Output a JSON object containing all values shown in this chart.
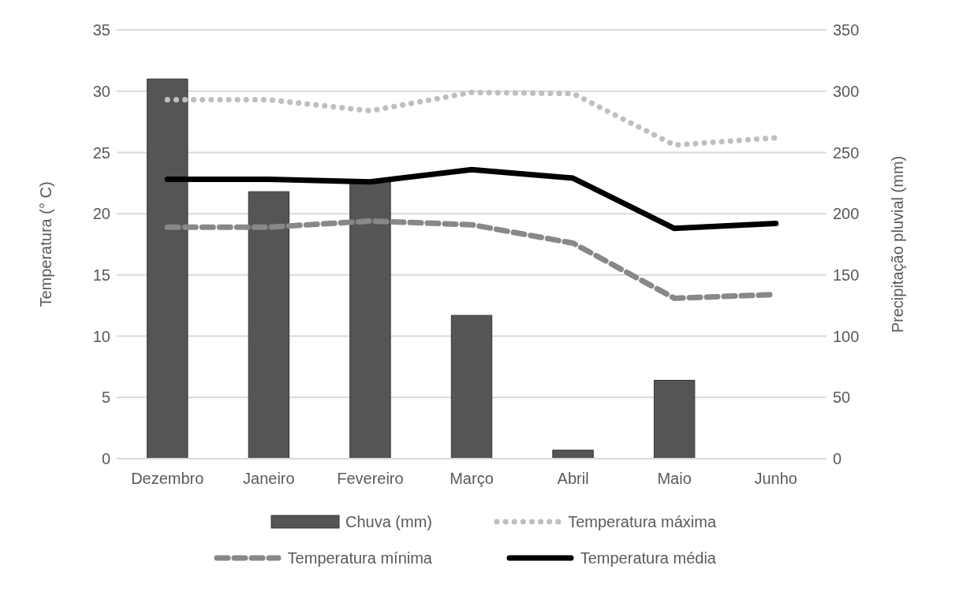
{
  "chart_data": {
    "type": "line",
    "xlabel": null,
    "ylabel": "Temperatura (° C)",
    "y2label": "Precipitação pluvial (mm)",
    "categories": [
      "Dezembro",
      "Janeiro",
      "Fevereiro",
      "Março",
      "Abril",
      "Maio",
      "Junho"
    ],
    "series": [
      {
        "name": "Chuva (mm)",
        "type": "bar",
        "axis": "y2",
        "color": "#555555",
        "values": [
          310,
          218,
          227,
          117,
          7,
          64,
          0
        ]
      },
      {
        "name": "Temperatura máxima",
        "color": "#bfbfbf",
        "line_style": "dotted",
        "values": [
          29.3,
          29.3,
          28.4,
          29.9,
          29.8,
          25.6,
          26.2
        ]
      },
      {
        "name": "Temperatura mínima",
        "color": "#888888",
        "line_style": "dashed",
        "values": [
          18.9,
          18.9,
          19.4,
          19.1,
          17.6,
          13.1,
          13.4
        ]
      },
      {
        "name": "Temperatura média",
        "color": "#000000",
        "line_style": "solid",
        "values": [
          22.8,
          22.8,
          22.6,
          23.6,
          22.9,
          18.8,
          19.2
        ]
      }
    ],
    "ylim": [
      0,
      35
    ],
    "yticks": [
      0,
      5,
      10,
      15,
      20,
      25,
      30,
      35
    ],
    "y2lim": [
      0,
      350
    ],
    "y2ticks": [
      0,
      50,
      100,
      150,
      200,
      250,
      300,
      350
    ],
    "grid": "y",
    "legend": "bottom",
    "marker": "none"
  }
}
